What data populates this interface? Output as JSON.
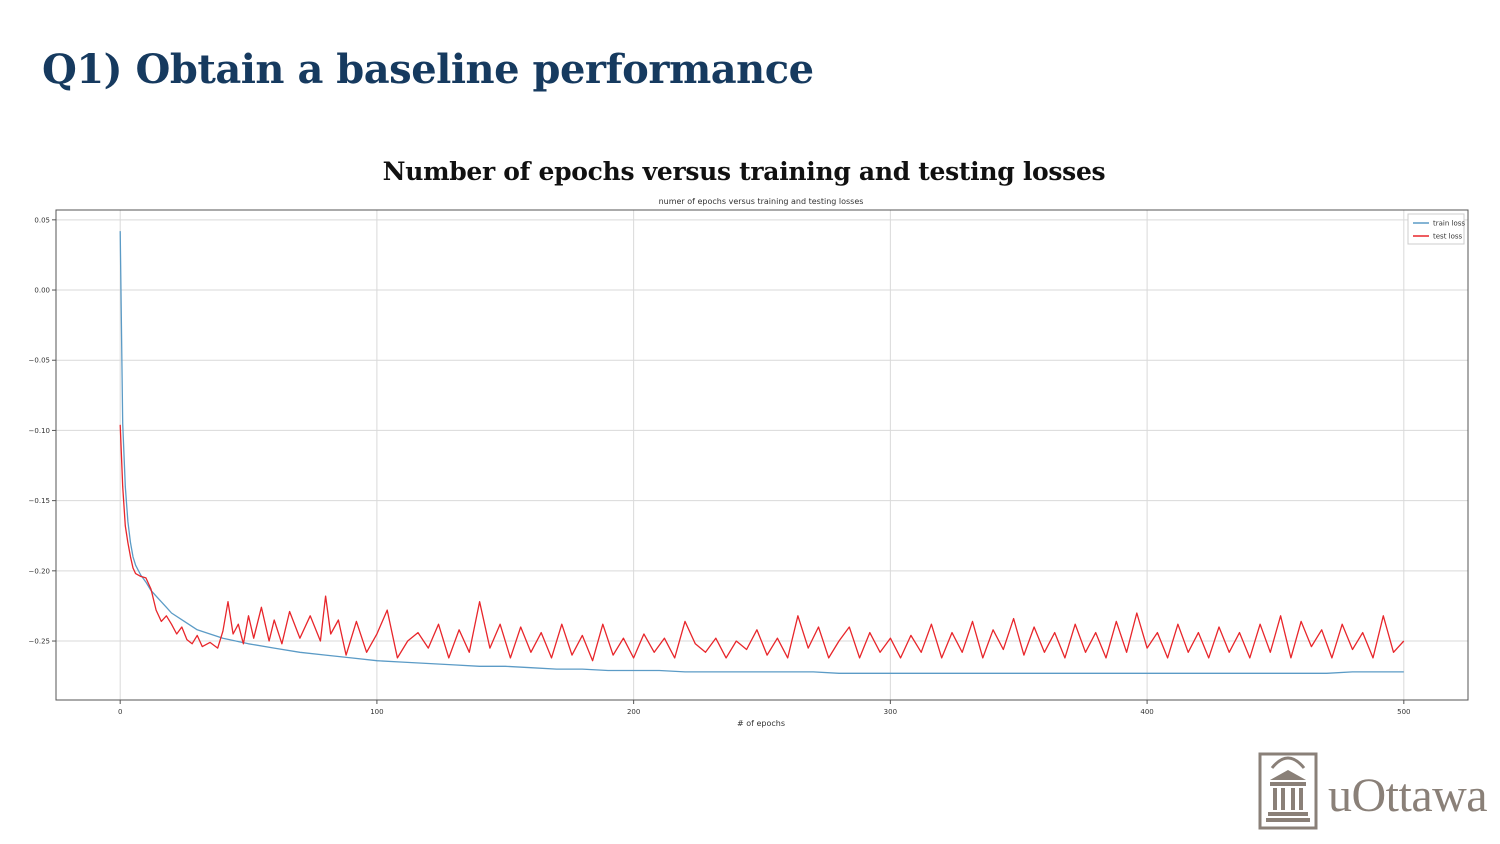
{
  "slide": {
    "title": "Q1) Obtain a baseline performance",
    "chart_heading": "Number of epochs versus training and testing losses"
  },
  "logo": {
    "text": "uOttawa"
  },
  "colors": {
    "title": "#163a5f",
    "train": "#5b9bc6",
    "test": "#e8262b",
    "grid": "#d9d9d9",
    "logo": "#8a8078"
  },
  "chart_data": {
    "type": "line",
    "title": "numer of epochs versus training and testing losses",
    "xlabel": "# of epochs",
    "ylabel": "",
    "xlim": [
      -25,
      525
    ],
    "ylim": [
      -0.292,
      0.057
    ],
    "grid": true,
    "legend_position": "top-right",
    "xticks": [
      0,
      100,
      200,
      300,
      400,
      500
    ],
    "yticks": [
      0.05,
      0.0,
      -0.05,
      -0.1,
      -0.15,
      -0.2,
      -0.25
    ],
    "ytick_labels": [
      "0.05",
      "0.00",
      "−0.05",
      "−0.10",
      "−0.15",
      "−0.20",
      "−0.25"
    ],
    "series": [
      {
        "name": "train loss",
        "color": "#5b9bc6",
        "points": [
          [
            0,
            0.042
          ],
          [
            1,
            -0.095
          ],
          [
            2,
            -0.14
          ],
          [
            3,
            -0.165
          ],
          [
            4,
            -0.18
          ],
          [
            5,
            -0.19
          ],
          [
            6,
            -0.196
          ],
          [
            8,
            -0.203
          ],
          [
            10,
            -0.208
          ],
          [
            12,
            -0.214
          ],
          [
            15,
            -0.22
          ],
          [
            18,
            -0.226
          ],
          [
            20,
            -0.23
          ],
          [
            25,
            -0.236
          ],
          [
            30,
            -0.242
          ],
          [
            35,
            -0.245
          ],
          [
            40,
            -0.248
          ],
          [
            45,
            -0.25
          ],
          [
            50,
            -0.252
          ],
          [
            60,
            -0.255
          ],
          [
            70,
            -0.258
          ],
          [
            80,
            -0.26
          ],
          [
            90,
            -0.262
          ],
          [
            100,
            -0.264
          ],
          [
            110,
            -0.265
          ],
          [
            120,
            -0.266
          ],
          [
            130,
            -0.267
          ],
          [
            140,
            -0.268
          ],
          [
            150,
            -0.268
          ],
          [
            160,
            -0.269
          ],
          [
            170,
            -0.27
          ],
          [
            180,
            -0.27
          ],
          [
            190,
            -0.271
          ],
          [
            200,
            -0.271
          ],
          [
            210,
            -0.271
          ],
          [
            220,
            -0.272
          ],
          [
            230,
            -0.272
          ],
          [
            240,
            -0.272
          ],
          [
            250,
            -0.272
          ],
          [
            260,
            -0.272
          ],
          [
            270,
            -0.272
          ],
          [
            280,
            -0.273
          ],
          [
            290,
            -0.273
          ],
          [
            300,
            -0.273
          ],
          [
            310,
            -0.273
          ],
          [
            320,
            -0.273
          ],
          [
            330,
            -0.273
          ],
          [
            340,
            -0.273
          ],
          [
            350,
            -0.273
          ],
          [
            360,
            -0.273
          ],
          [
            370,
            -0.273
          ],
          [
            380,
            -0.273
          ],
          [
            390,
            -0.273
          ],
          [
            400,
            -0.273
          ],
          [
            410,
            -0.273
          ],
          [
            420,
            -0.273
          ],
          [
            430,
            -0.273
          ],
          [
            440,
            -0.273
          ],
          [
            450,
            -0.273
          ],
          [
            460,
            -0.273
          ],
          [
            470,
            -0.273
          ],
          [
            480,
            -0.272
          ],
          [
            490,
            -0.272
          ],
          [
            500,
            -0.272
          ]
        ]
      },
      {
        "name": "test loss",
        "color": "#e8262b",
        "points": [
          [
            0,
            -0.096
          ],
          [
            1,
            -0.14
          ],
          [
            2,
            -0.168
          ],
          [
            3,
            -0.18
          ],
          [
            4,
            -0.19
          ],
          [
            5,
            -0.198
          ],
          [
            6,
            -0.202
          ],
          [
            8,
            -0.204
          ],
          [
            10,
            -0.205
          ],
          [
            12,
            -0.213
          ],
          [
            14,
            -0.228
          ],
          [
            16,
            -0.236
          ],
          [
            18,
            -0.232
          ],
          [
            20,
            -0.238
          ],
          [
            22,
            -0.245
          ],
          [
            24,
            -0.24
          ],
          [
            26,
            -0.249
          ],
          [
            28,
            -0.252
          ],
          [
            30,
            -0.246
          ],
          [
            32,
            -0.254
          ],
          [
            35,
            -0.251
          ],
          [
            38,
            -0.255
          ],
          [
            40,
            -0.243
          ],
          [
            42,
            -0.222
          ],
          [
            44,
            -0.245
          ],
          [
            46,
            -0.238
          ],
          [
            48,
            -0.252
          ],
          [
            50,
            -0.232
          ],
          [
            52,
            -0.248
          ],
          [
            55,
            -0.226
          ],
          [
            58,
            -0.25
          ],
          [
            60,
            -0.235
          ],
          [
            63,
            -0.252
          ],
          [
            66,
            -0.229
          ],
          [
            70,
            -0.248
          ],
          [
            74,
            -0.232
          ],
          [
            78,
            -0.25
          ],
          [
            80,
            -0.218
          ],
          [
            82,
            -0.245
          ],
          [
            85,
            -0.235
          ],
          [
            88,
            -0.26
          ],
          [
            92,
            -0.236
          ],
          [
            96,
            -0.258
          ],
          [
            100,
            -0.245
          ],
          [
            104,
            -0.228
          ],
          [
            108,
            -0.262
          ],
          [
            112,
            -0.25
          ],
          [
            116,
            -0.244
          ],
          [
            120,
            -0.255
          ],
          [
            124,
            -0.238
          ],
          [
            128,
            -0.262
          ],
          [
            132,
            -0.242
          ],
          [
            136,
            -0.258
          ],
          [
            140,
            -0.222
          ],
          [
            144,
            -0.255
          ],
          [
            148,
            -0.238
          ],
          [
            152,
            -0.262
          ],
          [
            156,
            -0.24
          ],
          [
            160,
            -0.258
          ],
          [
            164,
            -0.244
          ],
          [
            168,
            -0.262
          ],
          [
            172,
            -0.238
          ],
          [
            176,
            -0.26
          ],
          [
            180,
            -0.246
          ],
          [
            184,
            -0.264
          ],
          [
            188,
            -0.238
          ],
          [
            192,
            -0.26
          ],
          [
            196,
            -0.248
          ],
          [
            200,
            -0.262
          ],
          [
            204,
            -0.245
          ],
          [
            208,
            -0.258
          ],
          [
            212,
            -0.248
          ],
          [
            216,
            -0.262
          ],
          [
            220,
            -0.236
          ],
          [
            224,
            -0.252
          ],
          [
            228,
            -0.258
          ],
          [
            232,
            -0.248
          ],
          [
            236,
            -0.262
          ],
          [
            240,
            -0.25
          ],
          [
            244,
            -0.256
          ],
          [
            248,
            -0.242
          ],
          [
            252,
            -0.26
          ],
          [
            256,
            -0.248
          ],
          [
            260,
            -0.262
          ],
          [
            264,
            -0.232
          ],
          [
            268,
            -0.255
          ],
          [
            272,
            -0.24
          ],
          [
            276,
            -0.262
          ],
          [
            280,
            -0.25
          ],
          [
            284,
            -0.24
          ],
          [
            288,
            -0.262
          ],
          [
            292,
            -0.244
          ],
          [
            296,
            -0.258
          ],
          [
            300,
            -0.248
          ],
          [
            304,
            -0.262
          ],
          [
            308,
            -0.246
          ],
          [
            312,
            -0.258
          ],
          [
            316,
            -0.238
          ],
          [
            320,
            -0.262
          ],
          [
            324,
            -0.244
          ],
          [
            328,
            -0.258
          ],
          [
            332,
            -0.236
          ],
          [
            336,
            -0.262
          ],
          [
            340,
            -0.242
          ],
          [
            344,
            -0.256
          ],
          [
            348,
            -0.234
          ],
          [
            352,
            -0.26
          ],
          [
            356,
            -0.24
          ],
          [
            360,
            -0.258
          ],
          [
            364,
            -0.244
          ],
          [
            368,
            -0.262
          ],
          [
            372,
            -0.238
          ],
          [
            376,
            -0.258
          ],
          [
            380,
            -0.244
          ],
          [
            384,
            -0.262
          ],
          [
            388,
            -0.236
          ],
          [
            392,
            -0.258
          ],
          [
            396,
            -0.23
          ],
          [
            400,
            -0.255
          ],
          [
            404,
            -0.244
          ],
          [
            408,
            -0.262
          ],
          [
            412,
            -0.238
          ],
          [
            416,
            -0.258
          ],
          [
            420,
            -0.244
          ],
          [
            424,
            -0.262
          ],
          [
            428,
            -0.24
          ],
          [
            432,
            -0.258
          ],
          [
            436,
            -0.244
          ],
          [
            440,
            -0.262
          ],
          [
            444,
            -0.238
          ],
          [
            448,
            -0.258
          ],
          [
            452,
            -0.232
          ],
          [
            456,
            -0.262
          ],
          [
            460,
            -0.236
          ],
          [
            464,
            -0.254
          ],
          [
            468,
            -0.242
          ],
          [
            472,
            -0.262
          ],
          [
            476,
            -0.238
          ],
          [
            480,
            -0.256
          ],
          [
            484,
            -0.244
          ],
          [
            488,
            -0.262
          ],
          [
            492,
            -0.232
          ],
          [
            496,
            -0.258
          ],
          [
            500,
            -0.25
          ]
        ]
      }
    ]
  }
}
